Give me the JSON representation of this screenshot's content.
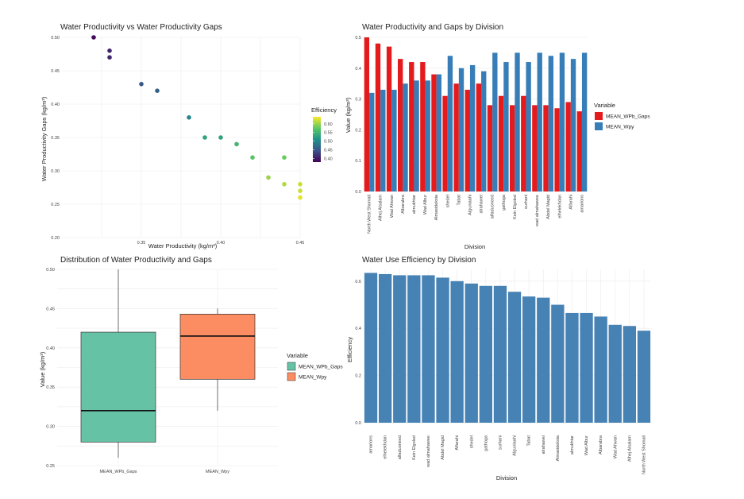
{
  "chart_data": [
    {
      "type": "scatter",
      "title": "Water Productivity vs Water Productivity Gaps",
      "xlabel": "Water Productivity (kg/m³)",
      "ylabel": "Water Productivity Gaps (kg/m³)",
      "xlim": [
        0.3,
        0.45
      ],
      "ylim": [
        0.2,
        0.5
      ],
      "x_ticks": [
        "0.35",
        "0.40",
        "0.45"
      ],
      "y_ticks": [
        "0.20",
        "0.25",
        "0.30",
        "0.35",
        "0.40",
        "0.45",
        "0.50"
      ],
      "color_legend": {
        "title": "Efficiency",
        "min": 0.38,
        "max": 0.64,
        "ticks": [
          "0.60",
          "0.55",
          "0.50",
          "0.45",
          "0.40"
        ],
        "tick_values": [
          0.6,
          0.55,
          0.5,
          0.45,
          0.4
        ]
      },
      "points": [
        {
          "x": 0.32,
          "y": 0.5,
          "efficiency": 0.39
        },
        {
          "x": 0.33,
          "y": 0.48,
          "efficiency": 0.41
        },
        {
          "x": 0.33,
          "y": 0.47,
          "efficiency": 0.41
        },
        {
          "x": 0.35,
          "y": 0.43,
          "efficiency": 0.45
        },
        {
          "x": 0.36,
          "y": 0.42,
          "efficiency": 0.46
        },
        {
          "x": 0.38,
          "y": 0.38,
          "efficiency": 0.5
        },
        {
          "x": 0.39,
          "y": 0.35,
          "efficiency": 0.53
        },
        {
          "x": 0.4,
          "y": 0.35,
          "efficiency": 0.53
        },
        {
          "x": 0.41,
          "y": 0.34,
          "efficiency": 0.55
        },
        {
          "x": 0.42,
          "y": 0.32,
          "efficiency": 0.57
        },
        {
          "x": 0.43,
          "y": 0.29,
          "efficiency": 0.6
        },
        {
          "x": 0.44,
          "y": 0.32,
          "efficiency": 0.58
        },
        {
          "x": 0.44,
          "y": 0.28,
          "efficiency": 0.61
        },
        {
          "x": 0.45,
          "y": 0.28,
          "efficiency": 0.62
        },
        {
          "x": 0.45,
          "y": 0.27,
          "efficiency": 0.62
        },
        {
          "x": 0.45,
          "y": 0.26,
          "efficiency": 0.63
        }
      ]
    },
    {
      "type": "bar",
      "title": "Water Productivity and Gaps by Division",
      "xlabel": "Division",
      "ylabel": "Value (kg/m³)",
      "ylim": [
        0,
        0.5
      ],
      "y_ticks": [
        "0.0",
        "0.1",
        "0.2",
        "0.3",
        "0.4",
        "0.5"
      ],
      "legend_title": "Variable",
      "categories": [
        "North West Shomali",
        "Alhej Alsalam",
        "Wad Ahwan",
        "Albarabra",
        "almukhtar",
        "Wad Albur",
        "Almasideksia",
        "shedel",
        "Tabat",
        "Alguniaahi",
        "alrahawei",
        "alfaduoneed",
        "gathoga",
        "Kein Elgoled",
        "surhani",
        "wad almahawee",
        "Abdel Magid",
        "elhelekhdan",
        "Alfarahi",
        "amarions"
      ],
      "series": [
        {
          "name": "MEAN_WPb_Gaps",
          "color": "#E41A1C",
          "values": [
            0.5,
            0.48,
            0.47,
            0.43,
            0.42,
            0.42,
            0.38,
            0.31,
            0.35,
            0.33,
            0.35,
            0.28,
            0.31,
            0.28,
            0.31,
            0.28,
            0.28,
            0.27,
            0.29,
            0.26
          ]
        },
        {
          "name": "MEAN_Wpy",
          "color": "#377EB8",
          "values": [
            0.32,
            0.33,
            0.33,
            0.35,
            0.36,
            0.36,
            0.38,
            0.44,
            0.4,
            0.41,
            0.39,
            0.45,
            0.42,
            0.45,
            0.42,
            0.45,
            0.44,
            0.45,
            0.43,
            0.45
          ]
        }
      ]
    },
    {
      "type": "box",
      "title": "Distribution of Water Productivity and Gaps",
      "xlabel": "",
      "ylabel": "Value (kg/m³)",
      "ylim": [
        0.25,
        0.5
      ],
      "y_ticks": [
        "0.25",
        "0.30",
        "0.35",
        "0.40",
        "0.45",
        "0.50"
      ],
      "legend_title": "Variable",
      "categories": [
        "MEAN_WPb_Gaps",
        "MEAN_Wpy"
      ],
      "boxes": [
        {
          "name": "MEAN_WPb_Gaps",
          "color": "#66C2A5",
          "min": 0.26,
          "q1": 0.28,
          "median": 0.32,
          "q3": 0.42,
          "max": 0.5
        },
        {
          "name": "MEAN_Wpy",
          "color": "#FC8D62",
          "min": 0.32,
          "q1": 0.36,
          "median": 0.415,
          "q3": 0.443,
          "max": 0.45
        }
      ]
    },
    {
      "type": "bar",
      "title": "Water Use Efficiency by Division",
      "xlabel": "Division",
      "ylabel": "Efficiency",
      "ylim": [
        0,
        0.65
      ],
      "y_ticks": [
        "0.0",
        "0.2",
        "0.4",
        "0.6"
      ],
      "color": "#4682B4",
      "categories": [
        "amarions",
        "elhelekhdan",
        "alfaduoneed",
        "Kein Elgoled",
        "wad almahawee",
        "Abdel Magid",
        "Alfarahi",
        "shedel",
        "gathoga",
        "surhani",
        "Alguniaahi",
        "Tabat",
        "alrahawei",
        "Almasideksia",
        "almukhtar",
        "Wad Albur",
        "Albarabra",
        "Wad Ahwan",
        "Alhej Alsalam",
        "North West Shomali"
      ],
      "values": [
        0.635,
        0.63,
        0.625,
        0.625,
        0.625,
        0.615,
        0.6,
        0.59,
        0.58,
        0.58,
        0.555,
        0.535,
        0.53,
        0.5,
        0.465,
        0.465,
        0.45,
        0.415,
        0.41,
        0.39
      ]
    }
  ]
}
